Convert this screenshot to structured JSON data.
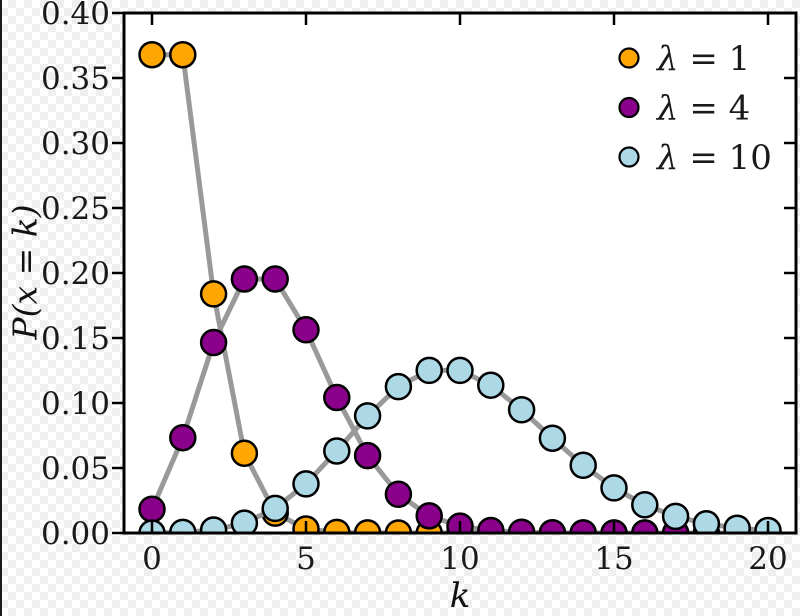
{
  "figure": {
    "description": "Poisson probability mass functions for three rate parameters"
  },
  "chart_data": {
    "type": "line",
    "title": "",
    "xlabel": "k",
    "ylabel": "P(x = k)",
    "x": [
      0,
      1,
      2,
      3,
      4,
      5,
      6,
      7,
      8,
      9,
      10,
      11,
      12,
      13,
      14,
      15,
      16,
      17,
      18,
      19,
      20
    ],
    "series": [
      {
        "name": "λ = 1",
        "marker_color": "#FFA600",
        "values": [
          0.3679,
          0.3679,
          0.1839,
          0.0613,
          0.0153,
          0.0031,
          0.0005,
          0.0001,
          0,
          0,
          0,
          0,
          0,
          0,
          0,
          0,
          0,
          0,
          0,
          0,
          0
        ]
      },
      {
        "name": "λ = 4",
        "marker_color": "#8B008B",
        "values": [
          0.0183,
          0.0733,
          0.1465,
          0.1954,
          0.1954,
          0.1563,
          0.1042,
          0.0595,
          0.0298,
          0.0132,
          0.0053,
          0.0019,
          0.0006,
          0.0002,
          0.0001,
          0,
          0,
          0,
          0,
          0,
          0
        ]
      },
      {
        "name": "λ = 10",
        "marker_color": "#ADD8E6",
        "values": [
          0,
          0.0005,
          0.0023,
          0.0076,
          0.0189,
          0.0378,
          0.0631,
          0.0901,
          0.1126,
          0.1251,
          0.1251,
          0.1137,
          0.0948,
          0.0729,
          0.0521,
          0.0347,
          0.0217,
          0.0128,
          0.0071,
          0.0037,
          0.0019
        ]
      }
    ],
    "line_color": "#999999",
    "marker_edge_color": "#000000",
    "xlim": [
      -0.9,
      20.9
    ],
    "ylim": [
      0,
      0.4
    ],
    "x_ticks": [
      0,
      5,
      10,
      15,
      20
    ],
    "y_ticks": [
      0.0,
      0.05,
      0.1,
      0.15,
      0.2,
      0.25,
      0.3,
      0.35,
      0.4
    ],
    "legend_position": "upper right",
    "grid": false,
    "background": "transparent-checkerboard"
  },
  "colors": {
    "checker_light": "#ffffff",
    "checker_dark": "#efefef",
    "plot_background": "#ffffff",
    "axis": "#000000",
    "text": "#1a1a1a"
  }
}
